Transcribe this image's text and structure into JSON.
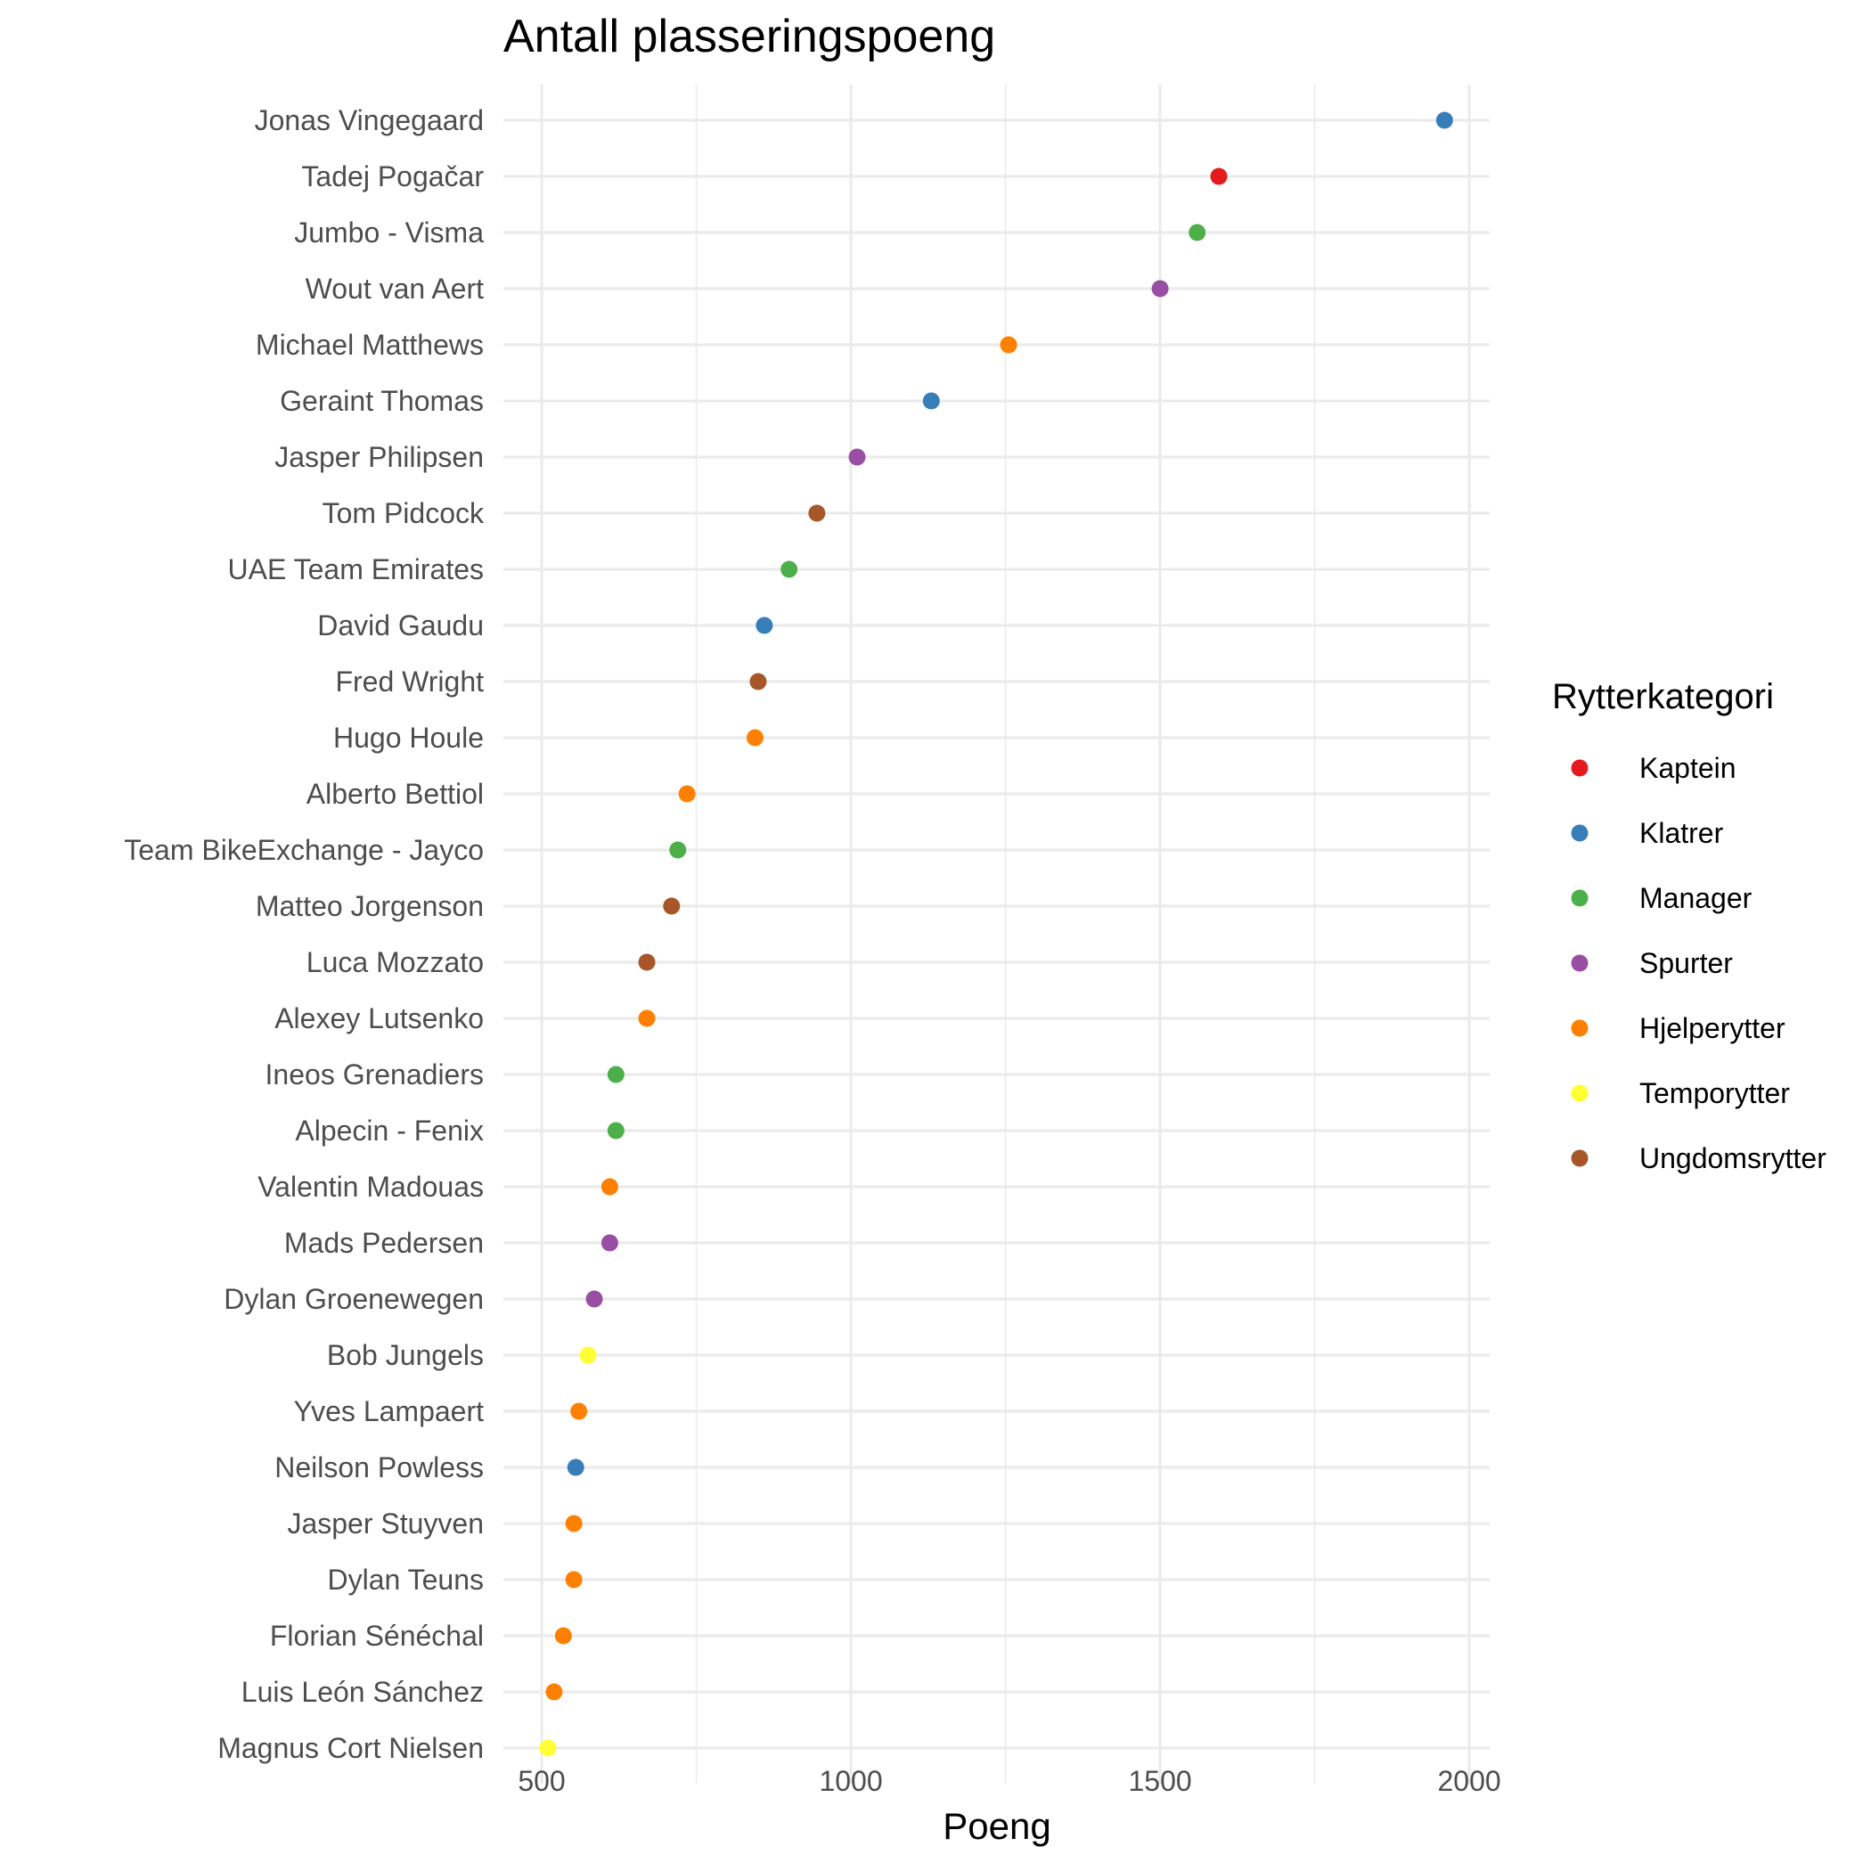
{
  "chart_data": {
    "type": "scatter",
    "title": "Antall plasseringspoeng",
    "xlabel": "Poeng",
    "ylabel": "",
    "xlim": [
      438,
      2033
    ],
    "xticks": [
      500,
      1000,
      1500,
      2000
    ],
    "grid": true,
    "legend": {
      "title": "Rytterkategori",
      "placement": "right",
      "entries": [
        {
          "name": "Kaptein",
          "color": "#e41a1c"
        },
        {
          "name": "Klatrer",
          "color": "#377eb8"
        },
        {
          "name": "Manager",
          "color": "#4daf4a"
        },
        {
          "name": "Spurter",
          "color": "#984ea3"
        },
        {
          "name": "Hjelperytter",
          "color": "#ff7f00"
        },
        {
          "name": "Temporytter",
          "color": "#ffff33"
        },
        {
          "name": "Ungdomsrytter",
          "color": "#a65628"
        }
      ]
    },
    "points": [
      {
        "label": "Jonas Vingegaard",
        "value": 1960,
        "category": "Klatrer"
      },
      {
        "label": "Tadej Pogačar",
        "value": 1595,
        "category": "Kaptein"
      },
      {
        "label": "Jumbo - Visma",
        "value": 1560,
        "category": "Manager"
      },
      {
        "label": "Wout van Aert",
        "value": 1500,
        "category": "Spurter"
      },
      {
        "label": "Michael Matthews",
        "value": 1255,
        "category": "Hjelperytter"
      },
      {
        "label": "Geraint Thomas",
        "value": 1130,
        "category": "Klatrer"
      },
      {
        "label": "Jasper Philipsen",
        "value": 1010,
        "category": "Spurter"
      },
      {
        "label": "Tom Pidcock",
        "value": 945,
        "category": "Ungdomsrytter"
      },
      {
        "label": "UAE Team Emirates",
        "value": 900,
        "category": "Manager"
      },
      {
        "label": "David Gaudu",
        "value": 860,
        "category": "Klatrer"
      },
      {
        "label": "Fred Wright",
        "value": 850,
        "category": "Ungdomsrytter"
      },
      {
        "label": "Hugo Houle",
        "value": 845,
        "category": "Hjelperytter"
      },
      {
        "label": "Alberto Bettiol",
        "value": 735,
        "category": "Hjelperytter"
      },
      {
        "label": "Team BikeExchange - Jayco",
        "value": 720,
        "category": "Manager"
      },
      {
        "label": "Matteo Jorgenson",
        "value": 710,
        "category": "Ungdomsrytter"
      },
      {
        "label": "Luca Mozzato",
        "value": 670,
        "category": "Ungdomsrytter"
      },
      {
        "label": "Alexey Lutsenko",
        "value": 670,
        "category": "Hjelperytter"
      },
      {
        "label": "Ineos Grenadiers",
        "value": 620,
        "category": "Manager"
      },
      {
        "label": "Alpecin - Fenix",
        "value": 620,
        "category": "Manager"
      },
      {
        "label": "Valentin Madouas",
        "value": 610,
        "category": "Hjelperytter"
      },
      {
        "label": "Mads Pedersen",
        "value": 610,
        "category": "Spurter"
      },
      {
        "label": "Dylan Groenewegen",
        "value": 585,
        "category": "Spurter"
      },
      {
        "label": "Bob Jungels",
        "value": 575,
        "category": "Temporytter"
      },
      {
        "label": "Yves Lampaert",
        "value": 560,
        "category": "Hjelperytter"
      },
      {
        "label": "Neilson Powless",
        "value": 555,
        "category": "Klatrer"
      },
      {
        "label": "Jasper Stuyven",
        "value": 552,
        "category": "Hjelperytter"
      },
      {
        "label": "Dylan Teuns",
        "value": 552,
        "category": "Hjelperytter"
      },
      {
        "label": "Florian Sénéchal",
        "value": 535,
        "category": "Hjelperytter"
      },
      {
        "label": "Luis León Sánchez",
        "value": 520,
        "category": "Hjelperytter"
      },
      {
        "label": "Magnus Cort Nielsen",
        "value": 510,
        "category": "Temporytter"
      }
    ]
  }
}
